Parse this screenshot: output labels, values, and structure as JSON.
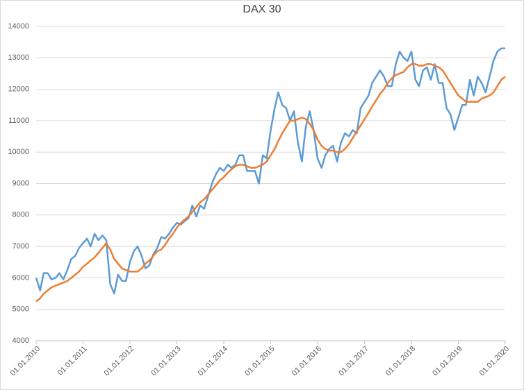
{
  "chart_data": {
    "type": "line",
    "title": "DAX 30",
    "x": [
      "01.01.2010",
      "01.02.2010",
      "01.03.2010",
      "01.04.2010",
      "01.05.2010",
      "01.06.2010",
      "01.07.2010",
      "01.08.2010",
      "01.09.2010",
      "01.10.2010",
      "01.11.2010",
      "01.12.2010",
      "01.01.2011",
      "01.02.2011",
      "01.03.2011",
      "01.04.2011",
      "01.05.2011",
      "01.06.2011",
      "01.07.2011",
      "01.08.2011",
      "01.09.2011",
      "01.10.2011",
      "01.11.2011",
      "01.12.2011",
      "01.01.2012",
      "01.02.2012",
      "01.03.2012",
      "01.04.2012",
      "01.05.2012",
      "01.06.2012",
      "01.07.2012",
      "01.08.2012",
      "01.09.2012",
      "01.10.2012",
      "01.11.2012",
      "01.12.2012",
      "01.01.2013",
      "01.02.2013",
      "01.03.2013",
      "01.04.2013",
      "01.05.2013",
      "01.06.2013",
      "01.07.2013",
      "01.08.2013",
      "01.09.2013",
      "01.10.2013",
      "01.11.2013",
      "01.12.2013",
      "01.01.2014",
      "01.02.2014",
      "01.03.2014",
      "01.04.2014",
      "01.05.2014",
      "01.06.2014",
      "01.07.2014",
      "01.08.2014",
      "01.09.2014",
      "01.10.2014",
      "01.11.2014",
      "01.12.2014",
      "01.01.2015",
      "01.02.2015",
      "01.03.2015",
      "01.04.2015",
      "01.05.2015",
      "01.06.2015",
      "01.07.2015",
      "01.08.2015",
      "01.09.2015",
      "01.10.2015",
      "01.11.2015",
      "01.12.2015",
      "01.01.2016",
      "01.02.2016",
      "01.03.2016",
      "01.04.2016",
      "01.05.2016",
      "01.06.2016",
      "01.07.2016",
      "01.08.2016",
      "01.09.2016",
      "01.10.2016",
      "01.11.2016",
      "01.12.2016",
      "01.01.2017",
      "01.02.2017",
      "01.03.2017",
      "01.04.2017",
      "01.05.2017",
      "01.06.2017",
      "01.07.2017",
      "01.08.2017",
      "01.09.2017",
      "01.10.2017",
      "01.11.2017",
      "01.12.2017",
      "01.01.2018",
      "01.02.2018",
      "01.03.2018",
      "01.04.2018",
      "01.05.2018",
      "01.06.2018",
      "01.07.2018",
      "01.08.2018",
      "01.09.2018",
      "01.10.2018",
      "01.11.2018",
      "01.12.2018",
      "01.01.2019",
      "01.02.2019",
      "01.03.2019",
      "01.04.2019",
      "01.05.2019",
      "01.06.2019",
      "01.07.2019",
      "01.08.2019",
      "01.09.2019",
      "01.10.2019",
      "01.11.2019",
      "01.12.2019",
      "01.01.2020"
    ],
    "series": [
      {
        "color": "#5b9bd5",
        "values": [
          6000,
          5600,
          6150,
          6150,
          5950,
          6000,
          6150,
          5950,
          6250,
          6600,
          6700,
          6950,
          7100,
          7250,
          7000,
          7400,
          7200,
          7350,
          7200,
          5800,
          5500,
          6100,
          5900,
          5900,
          6500,
          6850,
          7000,
          6700,
          6300,
          6400,
          6750,
          6950,
          7300,
          7250,
          7400,
          7600,
          7750,
          7700,
          7800,
          7900,
          8300,
          7950,
          8300,
          8200,
          8600,
          9000,
          9300,
          9500,
          9400,
          9600,
          9500,
          9600,
          9900,
          9900,
          9400,
          9400,
          9400,
          9000,
          9900,
          9800,
          10700,
          11400,
          11900,
          11500,
          11400,
          11000,
          11300,
          10300,
          9700,
          10800,
          11300,
          10700,
          9800,
          9500,
          9900,
          10100,
          10200,
          9700,
          10300,
          10600,
          10500,
          10700,
          10600,
          11400,
          11600,
          11800,
          12200,
          12400,
          12600,
          12400,
          12100,
          12100,
          12800,
          13200,
          13000,
          12900,
          13200,
          12300,
          12100,
          12600,
          12700,
          12300,
          12800,
          12200,
          12200,
          11400,
          11200,
          10700,
          11100,
          11500,
          11500,
          12300,
          11800,
          12400,
          12200,
          11900,
          12400,
          12900,
          13200,
          13300,
          13300
        ]
      },
      {
        "color": "#ed7d31",
        "values": [
          5250,
          5350,
          5500,
          5600,
          5700,
          5750,
          5800,
          5850,
          5900,
          6000,
          6100,
          6200,
          6350,
          6450,
          6550,
          6650,
          6800,
          6950,
          7100,
          6900,
          6600,
          6450,
          6300,
          6250,
          6200,
          6200,
          6200,
          6300,
          6450,
          6550,
          6700,
          6850,
          6900,
          7050,
          7250,
          7400,
          7600,
          7750,
          7850,
          7950,
          8100,
          8250,
          8400,
          8500,
          8650,
          8800,
          8950,
          9100,
          9200,
          9350,
          9450,
          9550,
          9600,
          9600,
          9550,
          9500,
          9500,
          9550,
          9600,
          9700,
          9900,
          10100,
          10350,
          10600,
          10800,
          11000,
          11000,
          11050,
          11100,
          11050,
          10900,
          10700,
          10400,
          10200,
          10100,
          10050,
          10050,
          10000,
          10000,
          10100,
          10250,
          10450,
          10650,
          10850,
          11050,
          11250,
          11450,
          11650,
          11850,
          12000,
          12200,
          12350,
          12450,
          12500,
          12550,
          12700,
          12800,
          12800,
          12750,
          12750,
          12800,
          12800,
          12750,
          12700,
          12600,
          12400,
          12200,
          12000,
          11800,
          11700,
          11600,
          11600,
          11600,
          11600,
          11700,
          11750,
          11800,
          11900,
          12100,
          12300,
          12400
        ]
      }
    ],
    "xlim": [
      "01.01.2010",
      "01.01.2020"
    ],
    "xticks": [
      "01.01.2010",
      "01.01.2011",
      "01.01.2012",
      "01.01.2013",
      "01.01.2014",
      "01.01.2015",
      "01.01.2016",
      "01.01.2017",
      "01.01.2018",
      "01.01.2019",
      "01.01.2020"
    ],
    "ylim": [
      4000,
      14000
    ],
    "yticks": [
      4000,
      5000,
      6000,
      7000,
      8000,
      9000,
      10000,
      11000,
      12000,
      13000,
      14000
    ],
    "grid": true
  }
}
